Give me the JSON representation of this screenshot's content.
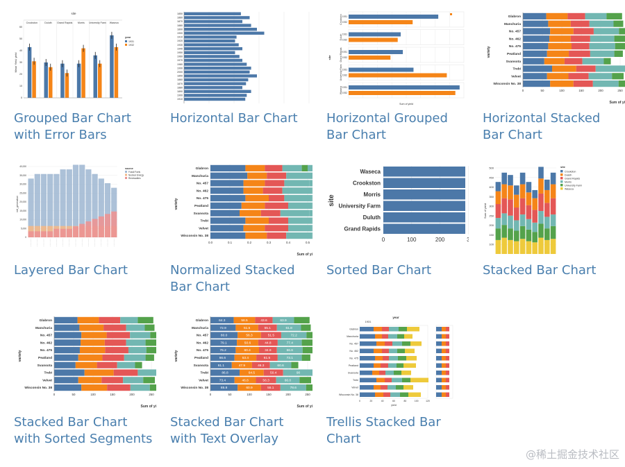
{
  "cards": [
    {
      "id": "grouped-bar-chart-with-error-bars",
      "title": "Grouped Bar Chart with Error Bars",
      "thumb": {
        "top_label": "site",
        "ylabel": "Mean Yield, yield",
        "legend_title": "year",
        "legend_items": [
          "1931",
          "1932"
        ],
        "categories": [
          "Crookston",
          "Duluth",
          "Grand Rapids",
          "Morris",
          "University Farm",
          "Waseca"
        ],
        "ticks": [
          "0",
          "10",
          "20",
          "30",
          "40",
          "50",
          "60"
        ]
      }
    },
    {
      "id": "horizontal-bar-chart",
      "title": "Horizontal Bar Chart",
      "thumb": {
        "labels": [
          "1850",
          "1860",
          "1870",
          "1880",
          "1890",
          "1900",
          "1910",
          "1920",
          "1930",
          "1940",
          "1950",
          "1960",
          "1970",
          "1980",
          "1990",
          "2000",
          "1850",
          "1860",
          "1870",
          "1880",
          "1890",
          "1900",
          "1910"
        ]
      }
    },
    {
      "id": "horizontal-grouped-bar-chart",
      "title": "Horizontal Grouped Bar Chart",
      "thumb": {
        "ylabel": "site",
        "xlabel": "Sum of yield",
        "sites": [
          "Crookston",
          "Duluth",
          "Grand Rapids",
          "University Farm",
          "Waseca"
        ],
        "year_labels": [
          "1931",
          "1932"
        ]
      }
    },
    {
      "id": "horizontal-stacked-bar-chart",
      "title": "Horizontal Stacked Bar Chart",
      "thumb": {
        "ylabel": "variety",
        "xlabel": "Sum of yi",
        "varieties": [
          "Glabron",
          "Manchuria",
          "No. 457",
          "No. 462",
          "No. 475",
          "Peatland",
          "Svansota",
          "Trebi",
          "Velvet",
          "Wisconsin No. 38"
        ],
        "ticks": [
          "0",
          "50",
          "100",
          "150",
          "200",
          "250"
        ]
      }
    },
    {
      "id": "layered-bar-chart",
      "title": "Layered Bar Chart",
      "thumb": {
        "legend_title": "source",
        "legend_items": [
          "Fossil Fuels",
          "Nuclear Energy",
          "Renewables"
        ],
        "ylabel": "net_generation",
        "ticks": [
          "40,000",
          "35,000",
          "30,000",
          "25,000",
          "20,000",
          "15,000",
          "10,000",
          "5,000",
          "0"
        ]
      }
    },
    {
      "id": "normalized-stacked-bar-chart",
      "title": "Normalized Stacked Bar Chart",
      "thumb": {
        "ylabel": "variety",
        "xlabel": "Sum of yi",
        "varieties": [
          "Glabron",
          "Manchuria",
          "No. 457",
          "No. 462",
          "No. 475",
          "Peatland",
          "Svansota",
          "Trebi",
          "Velvet",
          "Wisconsin No. 38"
        ],
        "ticks": [
          "0.0",
          "0.1",
          "0.2",
          "0.3",
          "0.4",
          "0.5"
        ]
      }
    },
    {
      "id": "sorted-bar-chart",
      "title": "Sorted Bar Chart",
      "thumb": {
        "ylabel": "site",
        "sites": [
          "Waseca",
          "Crookston",
          "Morris",
          "University Farm",
          "Duluth",
          "Grand Rapids"
        ],
        "ticks": [
          "0",
          "100",
          "200",
          "3"
        ]
      }
    },
    {
      "id": "stacked-bar-chart",
      "title": "Stacked Bar Chart",
      "thumb": {
        "legend_title": "site",
        "legend_items": [
          "Crookston",
          "Duluth",
          "Grand Rapids",
          "Morris",
          "University Farm",
          "Waseca"
        ],
        "ylabel": "Sum of yield",
        "ticks": [
          "500",
          "450",
          "400",
          "350",
          "300",
          "250",
          "200",
          "150",
          "100"
        ]
      }
    },
    {
      "id": "stacked-bar-chart-with-sorted-segments",
      "title": "Stacked Bar Chart with Sorted Segments",
      "thumb": {
        "ylabel": "variety",
        "xlabel": "Sum of yi",
        "varieties": [
          "Glabron",
          "Manchuria",
          "No. 457",
          "No. 462",
          "No. 475",
          "Peatland",
          "Svansota",
          "Trebi",
          "Velvet",
          "Wisconsin No. 38"
        ],
        "ticks": [
          "0",
          "50",
          "100",
          "150",
          "200",
          "250"
        ]
      }
    },
    {
      "id": "stacked-bar-chart-with-text-overlay",
      "title": "Stacked Bar Chart with Text Overlay",
      "thumb": {
        "ylabel": "variety",
        "xlabel": "Sum of yi",
        "varieties": [
          "Glabron",
          "Manchuria",
          "No. 457",
          "No. 462",
          "No. 475",
          "Peatland",
          "Svansota",
          "Trebi",
          "Velvet",
          "Wisconsin No. 38"
        ],
        "ticks": [
          "0",
          "50",
          "100",
          "150",
          "200",
          "250"
        ],
        "overlay": [
          [
            "64.3",
            "58.5",
            "43.6",
            "63.9"
          ],
          [
            "72.9",
            "51.5",
            "55.1",
            "61.8"
          ],
          [
            "80.0",
            "56.3",
            "51.5",
            "72.2"
          ],
          [
            "79.1",
            "50.6",
            "44.8",
            "77.4"
          ],
          [
            "76.2",
            "60.4",
            "34.9",
            "66.6"
          ],
          [
            "66.6",
            "53.4",
            "61.5",
            "73.1"
          ],
          [
            "61.1",
            "47.9",
            "46.3",
            "60.6"
          ],
          [
            "86.8",
            "64.5",
            "50.4",
            "90"
          ],
          [
            "73.4",
            "46.8",
            "56.3",
            "66.0"
          ],
          [
            "85.8",
            "60.9",
            "55.1",
            "78.6"
          ]
        ]
      }
    },
    {
      "id": "trellis-stacked-bar-chart",
      "title": "Trellis Stacked Bar Chart",
      "thumb": {
        "panel_title": "1931",
        "legend_title": "year",
        "xlabel": "yield",
        "varieties": [
          "Glabron",
          "Manchuria",
          "No. 457",
          "No. 462",
          "No. 475",
          "Peatland",
          "Svansota",
          "Trebi",
          "Velvet",
          "Wisconsin No. 38"
        ],
        "ticks": [
          "0",
          "20",
          "40",
          "60",
          "80",
          "100",
          "120"
        ]
      }
    }
  ],
  "watermark": "@稀土掘金技术社区",
  "colors": {
    "blue": "#4c78a8",
    "orange": "#f58518",
    "red": "#e45756",
    "teal": "#72b7b2",
    "green": "#54a24b",
    "yellow": "#eeca3b",
    "link": "#4a7fae",
    "grid": "#e6e6e6",
    "axis": "#888888"
  },
  "series_values": {
    "grouped_error": {
      "1931": [
        43,
        30,
        29,
        29,
        36,
        53
      ],
      "1932": [
        31,
        26,
        21,
        42,
        29,
        43
      ]
    },
    "horizontal_bar": [
      78,
      90,
      80,
      92,
      100,
      110,
      72,
      70,
      75,
      80,
      70,
      76,
      80,
      86,
      92,
      90,
      100,
      88,
      85,
      80,
      92,
      86,
      84
    ],
    "horizontal_grouped": {
      "1931": [
        210,
        122,
        127,
        152,
        260
      ],
      "1932": [
        150,
        115,
        98,
        230,
        250
      ]
    },
    "variety_stacked": [
      [
        60,
        55,
        45,
        55,
        40
      ],
      [
        65,
        58,
        48,
        62,
        25
      ],
      [
        70,
        60,
        52,
        65,
        18
      ],
      [
        68,
        55,
        50,
        62,
        30
      ],
      [
        65,
        60,
        46,
        66,
        28
      ],
      [
        62,
        56,
        55,
        62,
        22
      ],
      [
        55,
        52,
        46,
        55,
        18
      ],
      [
        75,
        62,
        50,
        78,
        28
      ],
      [
        62,
        55,
        52,
        60,
        30
      ],
      [
        70,
        60,
        50,
        66,
        30
      ]
    ],
    "normalized": [
      [
        0.18,
        0.1,
        0.09,
        0.1,
        0.03
      ],
      [
        0.19,
        0.1,
        0.1,
        0.11,
        0.0
      ],
      [
        0.17,
        0.11,
        0.1,
        0.13,
        0.0
      ],
      [
        0.17,
        0.1,
        0.1,
        0.15,
        0.0
      ],
      [
        0.18,
        0.12,
        0.08,
        0.14,
        0.0
      ],
      [
        0.16,
        0.12,
        0.12,
        0.12,
        0.0
      ],
      [
        0.15,
        0.11,
        0.1,
        0.15,
        0.0
      ],
      [
        0.18,
        0.12,
        0.1,
        0.12,
        0.0
      ],
      [
        0.17,
        0.11,
        0.12,
        0.12,
        0.0
      ],
      [
        0.18,
        0.11,
        0.1,
        0.13,
        0.0
      ]
    ],
    "sorted": [
      340,
      310,
      300,
      290,
      270,
      260
    ],
    "layered": [
      [
        12,
        13,
        13,
        13,
        13,
        14,
        14,
        15,
        15,
        14,
        13,
        12,
        11,
        10
      ],
      [
        4,
        4,
        4,
        4,
        4,
        4,
        4,
        4,
        4,
        4,
        4,
        4,
        4,
        4
      ],
      [
        1,
        1,
        1,
        1,
        2,
        2,
        2,
        3,
        4,
        5,
        6,
        7,
        8,
        9
      ]
    ],
    "stacked_site": [
      [
        60,
        50,
        45,
        60,
        55,
        40
      ],
      [
        70,
        55,
        50,
        65,
        60,
        50
      ],
      [
        60,
        50,
        55,
        70,
        60,
        45
      ],
      [
        55,
        45,
        45,
        55,
        55,
        40
      ],
      [
        65,
        55,
        50,
        70,
        60,
        50
      ],
      [
        55,
        50,
        45,
        60,
        55,
        45
      ],
      [
        50,
        45,
        40,
        55,
        50,
        35
      ],
      [
        70,
        60,
        55,
        75,
        65,
        50
      ],
      [
        60,
        50,
        50,
        60,
        55,
        45
      ],
      [
        65,
        55,
        50,
        70,
        60,
        50
      ]
    ],
    "trellis": [
      [
        20,
        12,
        10,
        14,
        12,
        18
      ],
      [
        22,
        10,
        9,
        13,
        10,
        12
      ],
      [
        24,
        12,
        11,
        14,
        12,
        16
      ],
      [
        20,
        12,
        10,
        12,
        11,
        14
      ],
      [
        22,
        11,
        9,
        13,
        12,
        15
      ],
      [
        20,
        10,
        11,
        12,
        10,
        18
      ],
      [
        18,
        10,
        9,
        12,
        11,
        14
      ],
      [
        24,
        12,
        10,
        15,
        12,
        26
      ],
      [
        20,
        10,
        10,
        12,
        11,
        14
      ],
      [
        22,
        12,
        10,
        14,
        12,
        18
      ]
    ]
  }
}
